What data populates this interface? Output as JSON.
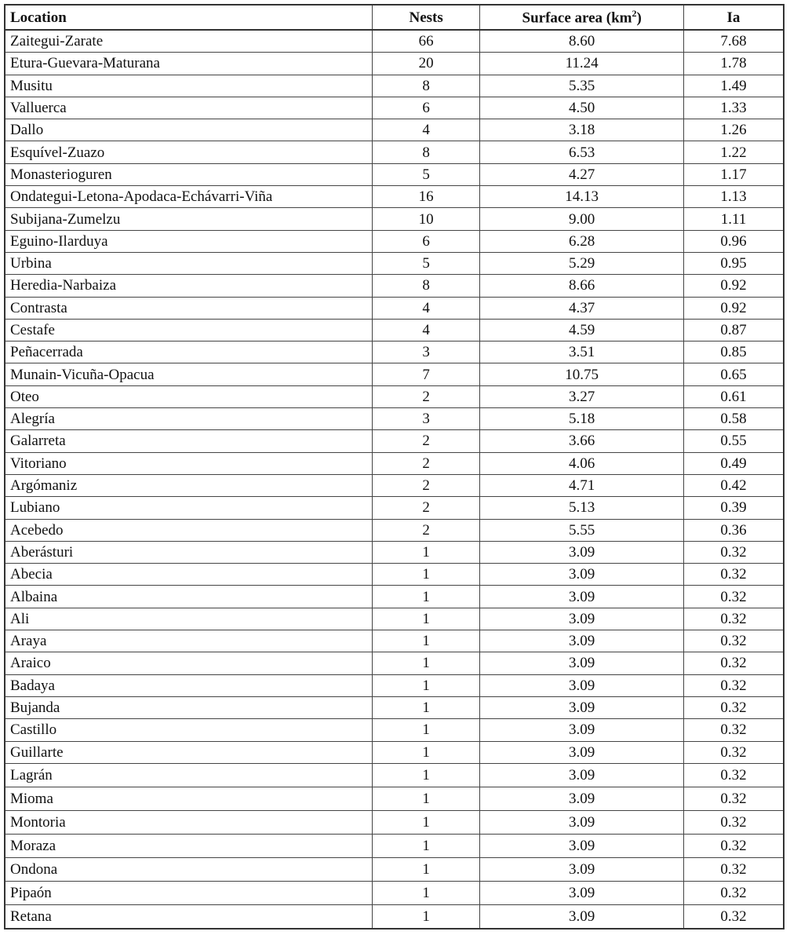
{
  "chart_data": {
    "type": "table",
    "columns": [
      "Location",
      "Nests",
      "Surface area (km",
      "Ia"
    ],
    "column_superscripts": {
      "Surface area (km": "2"
    },
    "column_suffixes": {
      "Surface area (km": ")"
    },
    "rows": [
      [
        "Zaitegui-Zarate",
        "66",
        "8.60",
        "7.68"
      ],
      [
        "Etura-Guevara-Maturana",
        "20",
        "11.24",
        "1.78"
      ],
      [
        "Musitu",
        "8",
        "5.35",
        "1.49"
      ],
      [
        "Valluerca",
        "6",
        "4.50",
        "1.33"
      ],
      [
        "Dallo",
        "4",
        "3.18",
        "1.26"
      ],
      [
        "Esquível-Zuazo",
        "8",
        "6.53",
        "1.22"
      ],
      [
        "Monasterioguren",
        "5",
        "4.27",
        "1.17"
      ],
      [
        "Ondategui-Letona-Apodaca-Echávarri-Viña",
        "16",
        "14.13",
        "1.13"
      ],
      [
        "Subijana-Zumelzu",
        "10",
        "9.00",
        "1.11"
      ],
      [
        "Eguino-Ilarduya",
        "6",
        "6.28",
        "0.96"
      ],
      [
        "Urbina",
        "5",
        "5.29",
        "0.95"
      ],
      [
        "Heredia-Narbaiza",
        "8",
        "8.66",
        "0.92"
      ],
      [
        "Contrasta",
        "4",
        "4.37",
        "0.92"
      ],
      [
        "Cestafe",
        "4",
        "4.59",
        "0.87"
      ],
      [
        "Peñacerrada",
        "3",
        "3.51",
        "0.85"
      ],
      [
        "Munain-Vicuña-Opacua",
        "7",
        "10.75",
        "0.65"
      ],
      [
        "Oteo",
        "2",
        "3.27",
        "0.61"
      ],
      [
        "Alegría",
        "3",
        "5.18",
        "0.58"
      ],
      [
        "Galarreta",
        "2",
        "3.66",
        "0.55"
      ],
      [
        "Vitoriano",
        "2",
        "4.06",
        "0.49"
      ],
      [
        "Argómaniz",
        "2",
        "4.71",
        "0.42"
      ],
      [
        "Lubiano",
        "2",
        "5.13",
        "0.39"
      ],
      [
        "Acebedo",
        "2",
        "5.55",
        "0.36"
      ],
      [
        "Aberásturi",
        "1",
        "3.09",
        "0.32"
      ],
      [
        "Abecia",
        "1",
        "3.09",
        "0.32"
      ],
      [
        "Albaina",
        "1",
        "3.09",
        "0.32"
      ],
      [
        "Ali",
        "1",
        "3.09",
        "0.32"
      ],
      [
        "Araya",
        "1",
        "3.09",
        "0.32"
      ],
      [
        "Araico",
        "1",
        "3.09",
        "0.32"
      ],
      [
        "Badaya",
        "1",
        "3.09",
        "0.32"
      ],
      [
        "Bujanda",
        "1",
        "3.09",
        "0.32"
      ],
      [
        "Castillo",
        "1",
        "3.09",
        "0.32"
      ],
      [
        "Guillarte",
        "1",
        "3.09",
        "0.32"
      ],
      [
        "Lagrán",
        "1",
        "3.09",
        "0.32"
      ],
      [
        "Mioma",
        "1",
        "3.09",
        "0.32"
      ],
      [
        "Montoria",
        "1",
        "3.09",
        "0.32"
      ],
      [
        "Moraza",
        "1",
        "3.09",
        "0.32"
      ],
      [
        "Ondona",
        "1",
        "3.09",
        "0.32"
      ],
      [
        "Pipaón",
        "1",
        "3.09",
        "0.32"
      ],
      [
        "Retana",
        "1",
        "3.09",
        "0.32"
      ]
    ]
  }
}
